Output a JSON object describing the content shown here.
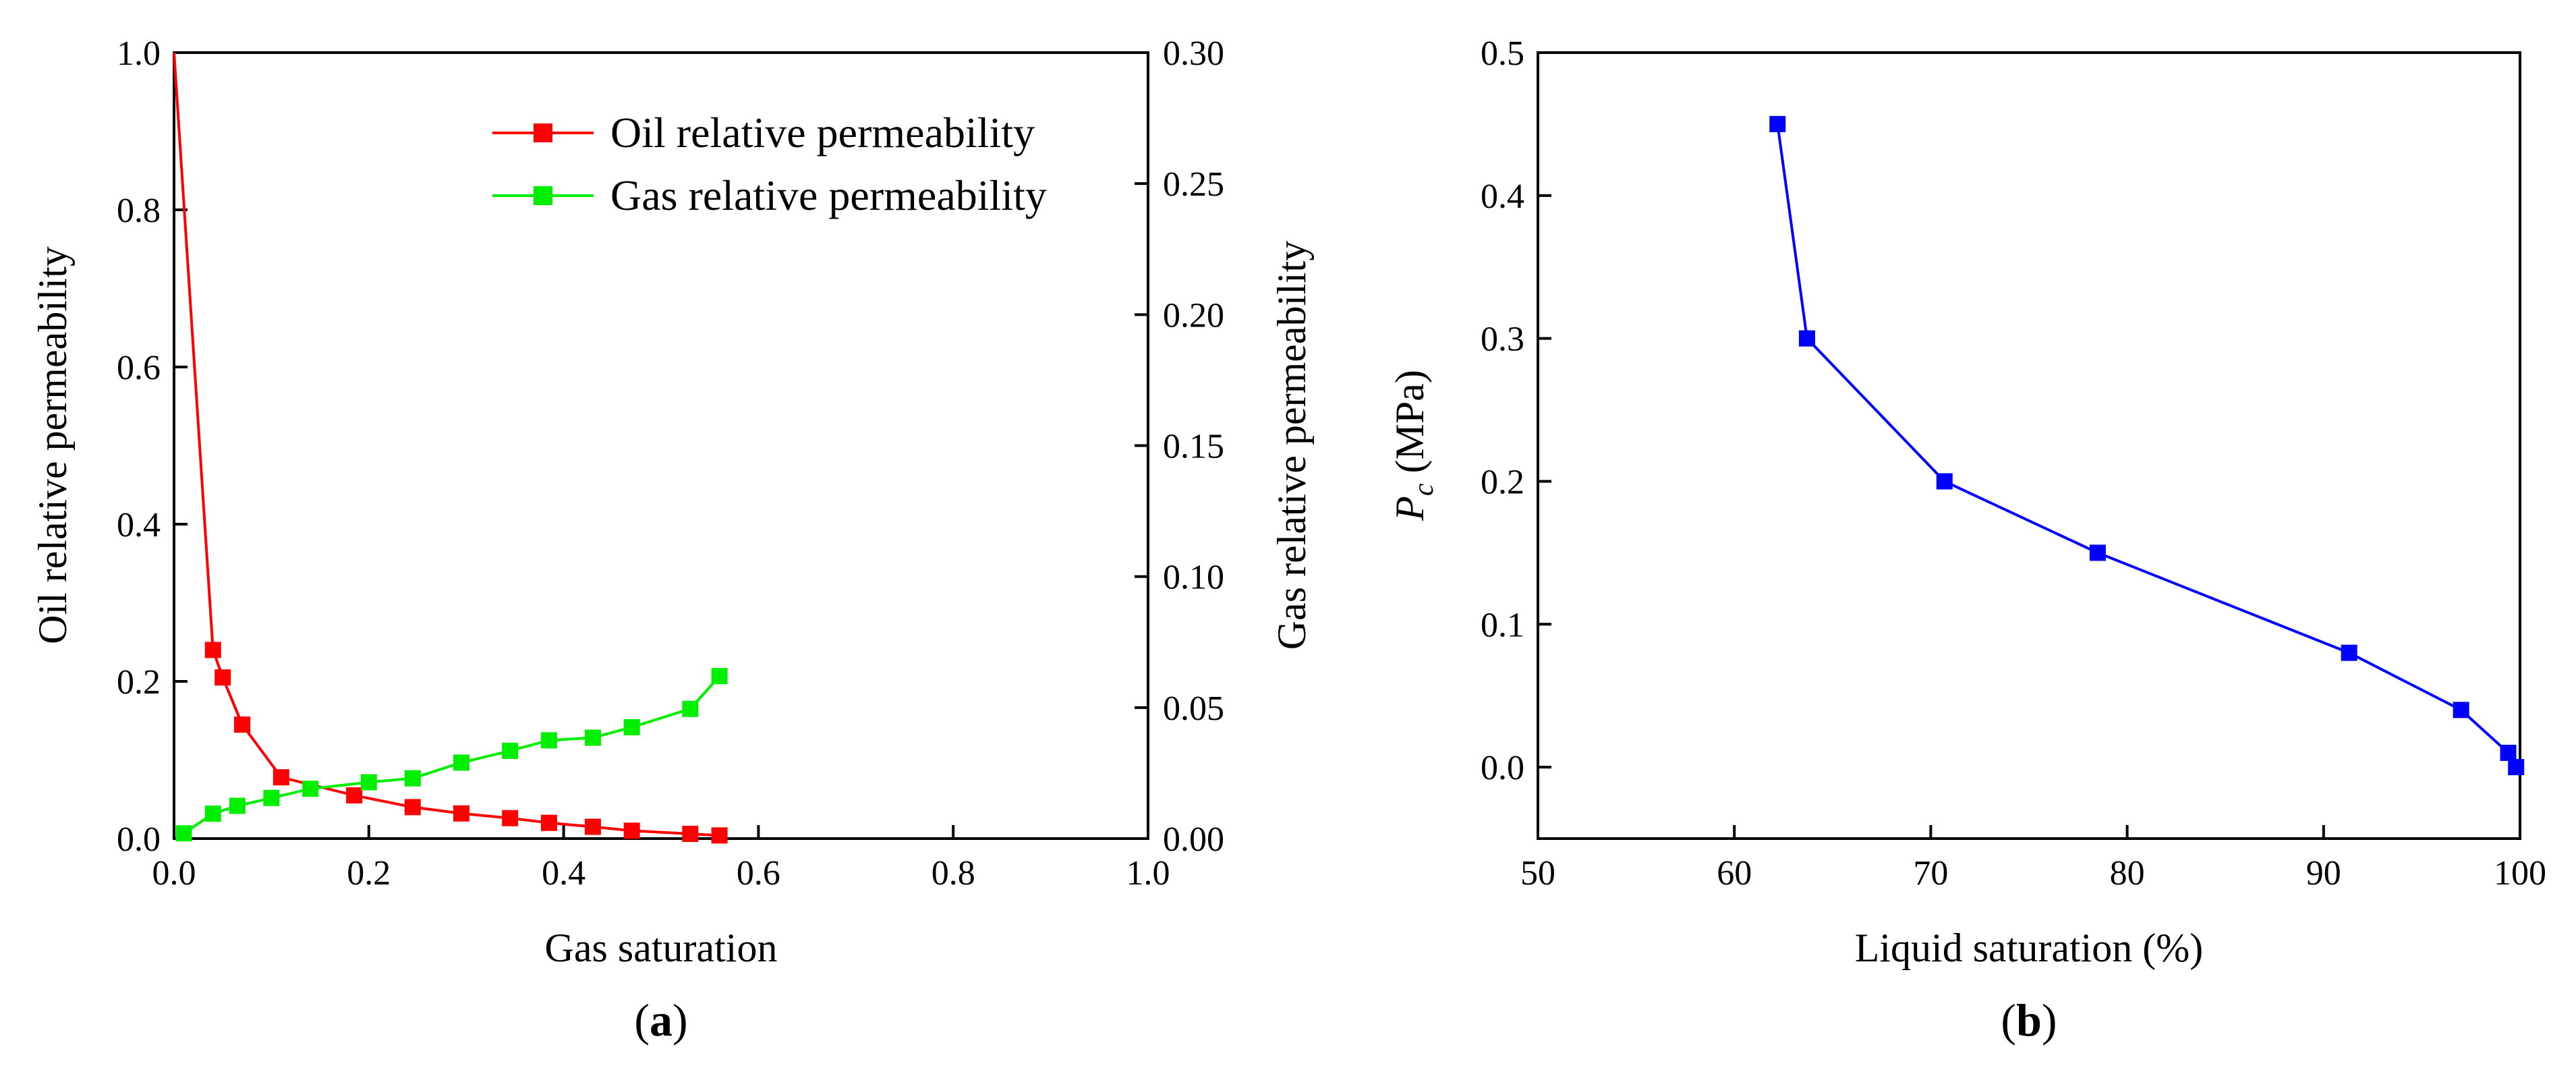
{
  "colors": {
    "oil": "#ff0000",
    "gas": "#00ee00",
    "pc": "#0000ff"
  },
  "panel_a": {
    "label_open": "(",
    "label_letter": "a",
    "label_close": ")"
  },
  "panel_b": {
    "label_open": "(",
    "label_letter": "b",
    "label_close": ")"
  },
  "chart_data": [
    {
      "type": "line",
      "xlabel": "Gas saturation",
      "ylabel": "Oil relative permeability",
      "y2label": "Gas relative permeability",
      "xlim": [
        0,
        1.0
      ],
      "ylim": [
        0,
        1.0
      ],
      "y2lim": [
        0,
        0.3
      ],
      "xticks": [
        "0.0",
        "0.2",
        "0.4",
        "0.6",
        "0.8",
        "1.0"
      ],
      "yticks": [
        "0.0",
        "0.2",
        "0.4",
        "0.6",
        "0.8",
        "1.0"
      ],
      "y2ticks": [
        "0.00",
        "0.05",
        "0.10",
        "0.15",
        "0.20",
        "0.25",
        "0.30"
      ],
      "legend_position": "top-right",
      "series": [
        {
          "name": "Oil relative permeability",
          "axis": "left",
          "x": [
            0.0,
            0.04,
            0.05,
            0.07,
            0.11,
            0.185,
            0.245,
            0.295,
            0.345,
            0.385,
            0.43,
            0.47,
            0.53,
            0.56
          ],
          "y": [
            1.0,
            0.24,
            0.205,
            0.145,
            0.078,
            0.055,
            0.04,
            0.032,
            0.026,
            0.02,
            0.015,
            0.01,
            0.006,
            0.004
          ]
        },
        {
          "name": "Gas relative permeability",
          "axis": "right",
          "x": [
            0.01,
            0.04,
            0.065,
            0.1,
            0.14,
            0.2,
            0.245,
            0.295,
            0.345,
            0.385,
            0.43,
            0.47,
            0.53,
            0.56
          ],
          "y": [
            0.002,
            0.0095,
            0.0125,
            0.0155,
            0.019,
            0.0215,
            0.023,
            0.029,
            0.0335,
            0.0375,
            0.0385,
            0.0425,
            0.0495,
            0.062
          ]
        }
      ]
    },
    {
      "type": "line",
      "xlabel": "Liquid saturation (%)",
      "ylabel_main": "P",
      "ylabel_sub": "c",
      "ylabel_unit": " (MPa)",
      "xlim": [
        50,
        100
      ],
      "ylim": [
        -0.05,
        0.5
      ],
      "xticks": [
        "50",
        "60",
        "70",
        "80",
        "90",
        "100"
      ],
      "yticks": [
        "0.0",
        "0.1",
        "0.2",
        "0.3",
        "0.4",
        "0.5"
      ],
      "series": [
        {
          "x": [
            62.2,
            63.7,
            70.7,
            78.5,
            91.3,
            97.0,
            99.4,
            99.8
          ],
          "y": [
            0.45,
            0.3,
            0.2,
            0.15,
            0.08,
            0.04,
            0.01,
            0.0
          ]
        }
      ]
    }
  ]
}
